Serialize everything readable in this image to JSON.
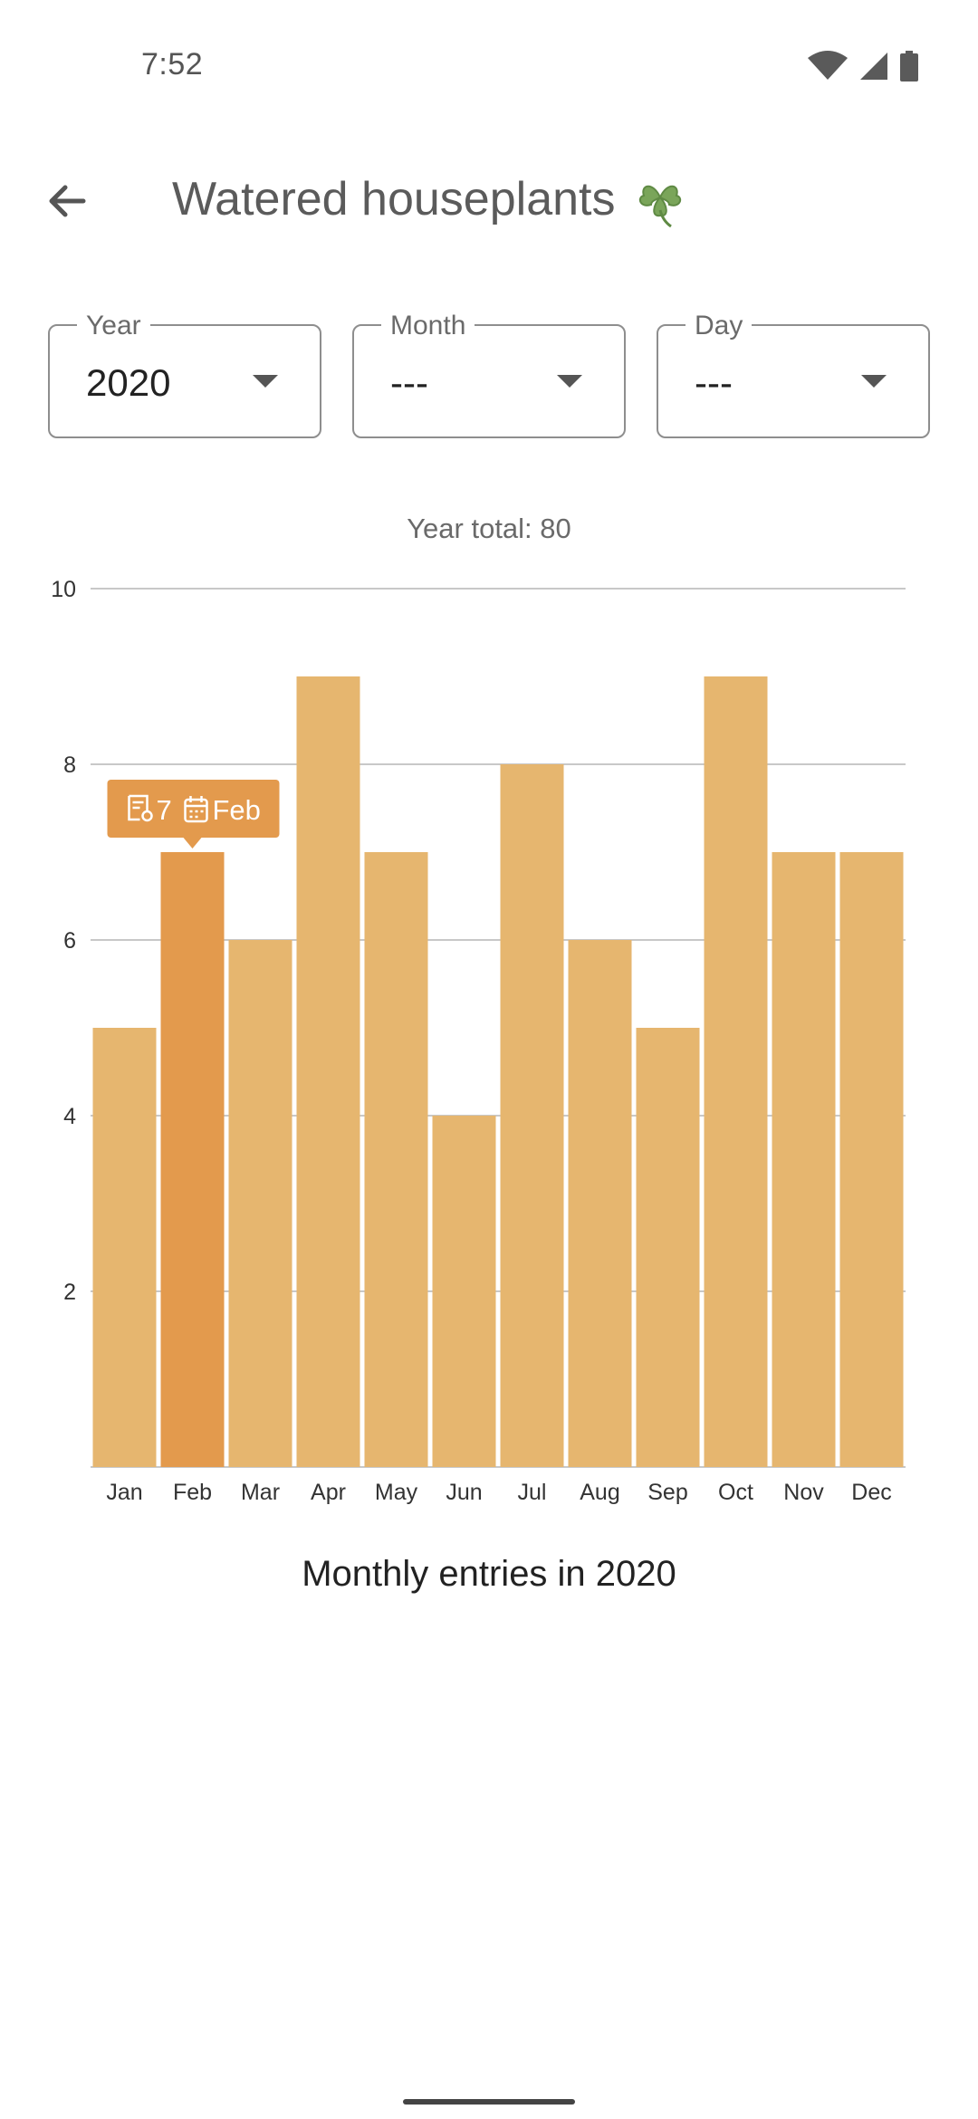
{
  "status_bar": {
    "time": "7:52",
    "icons": [
      "wifi-icon",
      "cellular-signal-icon",
      "battery-icon"
    ]
  },
  "header": {
    "title": "Watered houseplants",
    "emoji": "☘️",
    "back_icon": "arrow-back-icon"
  },
  "filters": {
    "year": {
      "label": "Year",
      "value": "2020"
    },
    "month": {
      "label": "Month",
      "value": "---"
    },
    "day": {
      "label": "Day",
      "value": "---"
    }
  },
  "summary": {
    "year_total": "Year total: 80"
  },
  "chart_data": {
    "type": "bar",
    "title": "Monthly entries in 2020",
    "xlabel": "",
    "ylabel": "",
    "categories": [
      "Jan",
      "Feb",
      "Mar",
      "Apr",
      "May",
      "Jun",
      "Jul",
      "Aug",
      "Sep",
      "Oct",
      "Nov",
      "Dec"
    ],
    "values": [
      5,
      7,
      6,
      9,
      7,
      4,
      8,
      6,
      5,
      9,
      7,
      7
    ],
    "ylim": [
      0,
      10
    ],
    "yticks": [
      2,
      4,
      6,
      8,
      10
    ],
    "grid": true,
    "bar_color": "#e6b66f",
    "highlight_color": "#e39a4d",
    "selected_index": 1,
    "tooltip": {
      "count": "7",
      "month": "Feb"
    }
  },
  "colors": {
    "accent": "#e39a4d",
    "bar": "#e6b66f",
    "title_text": "#5b5b5b"
  }
}
